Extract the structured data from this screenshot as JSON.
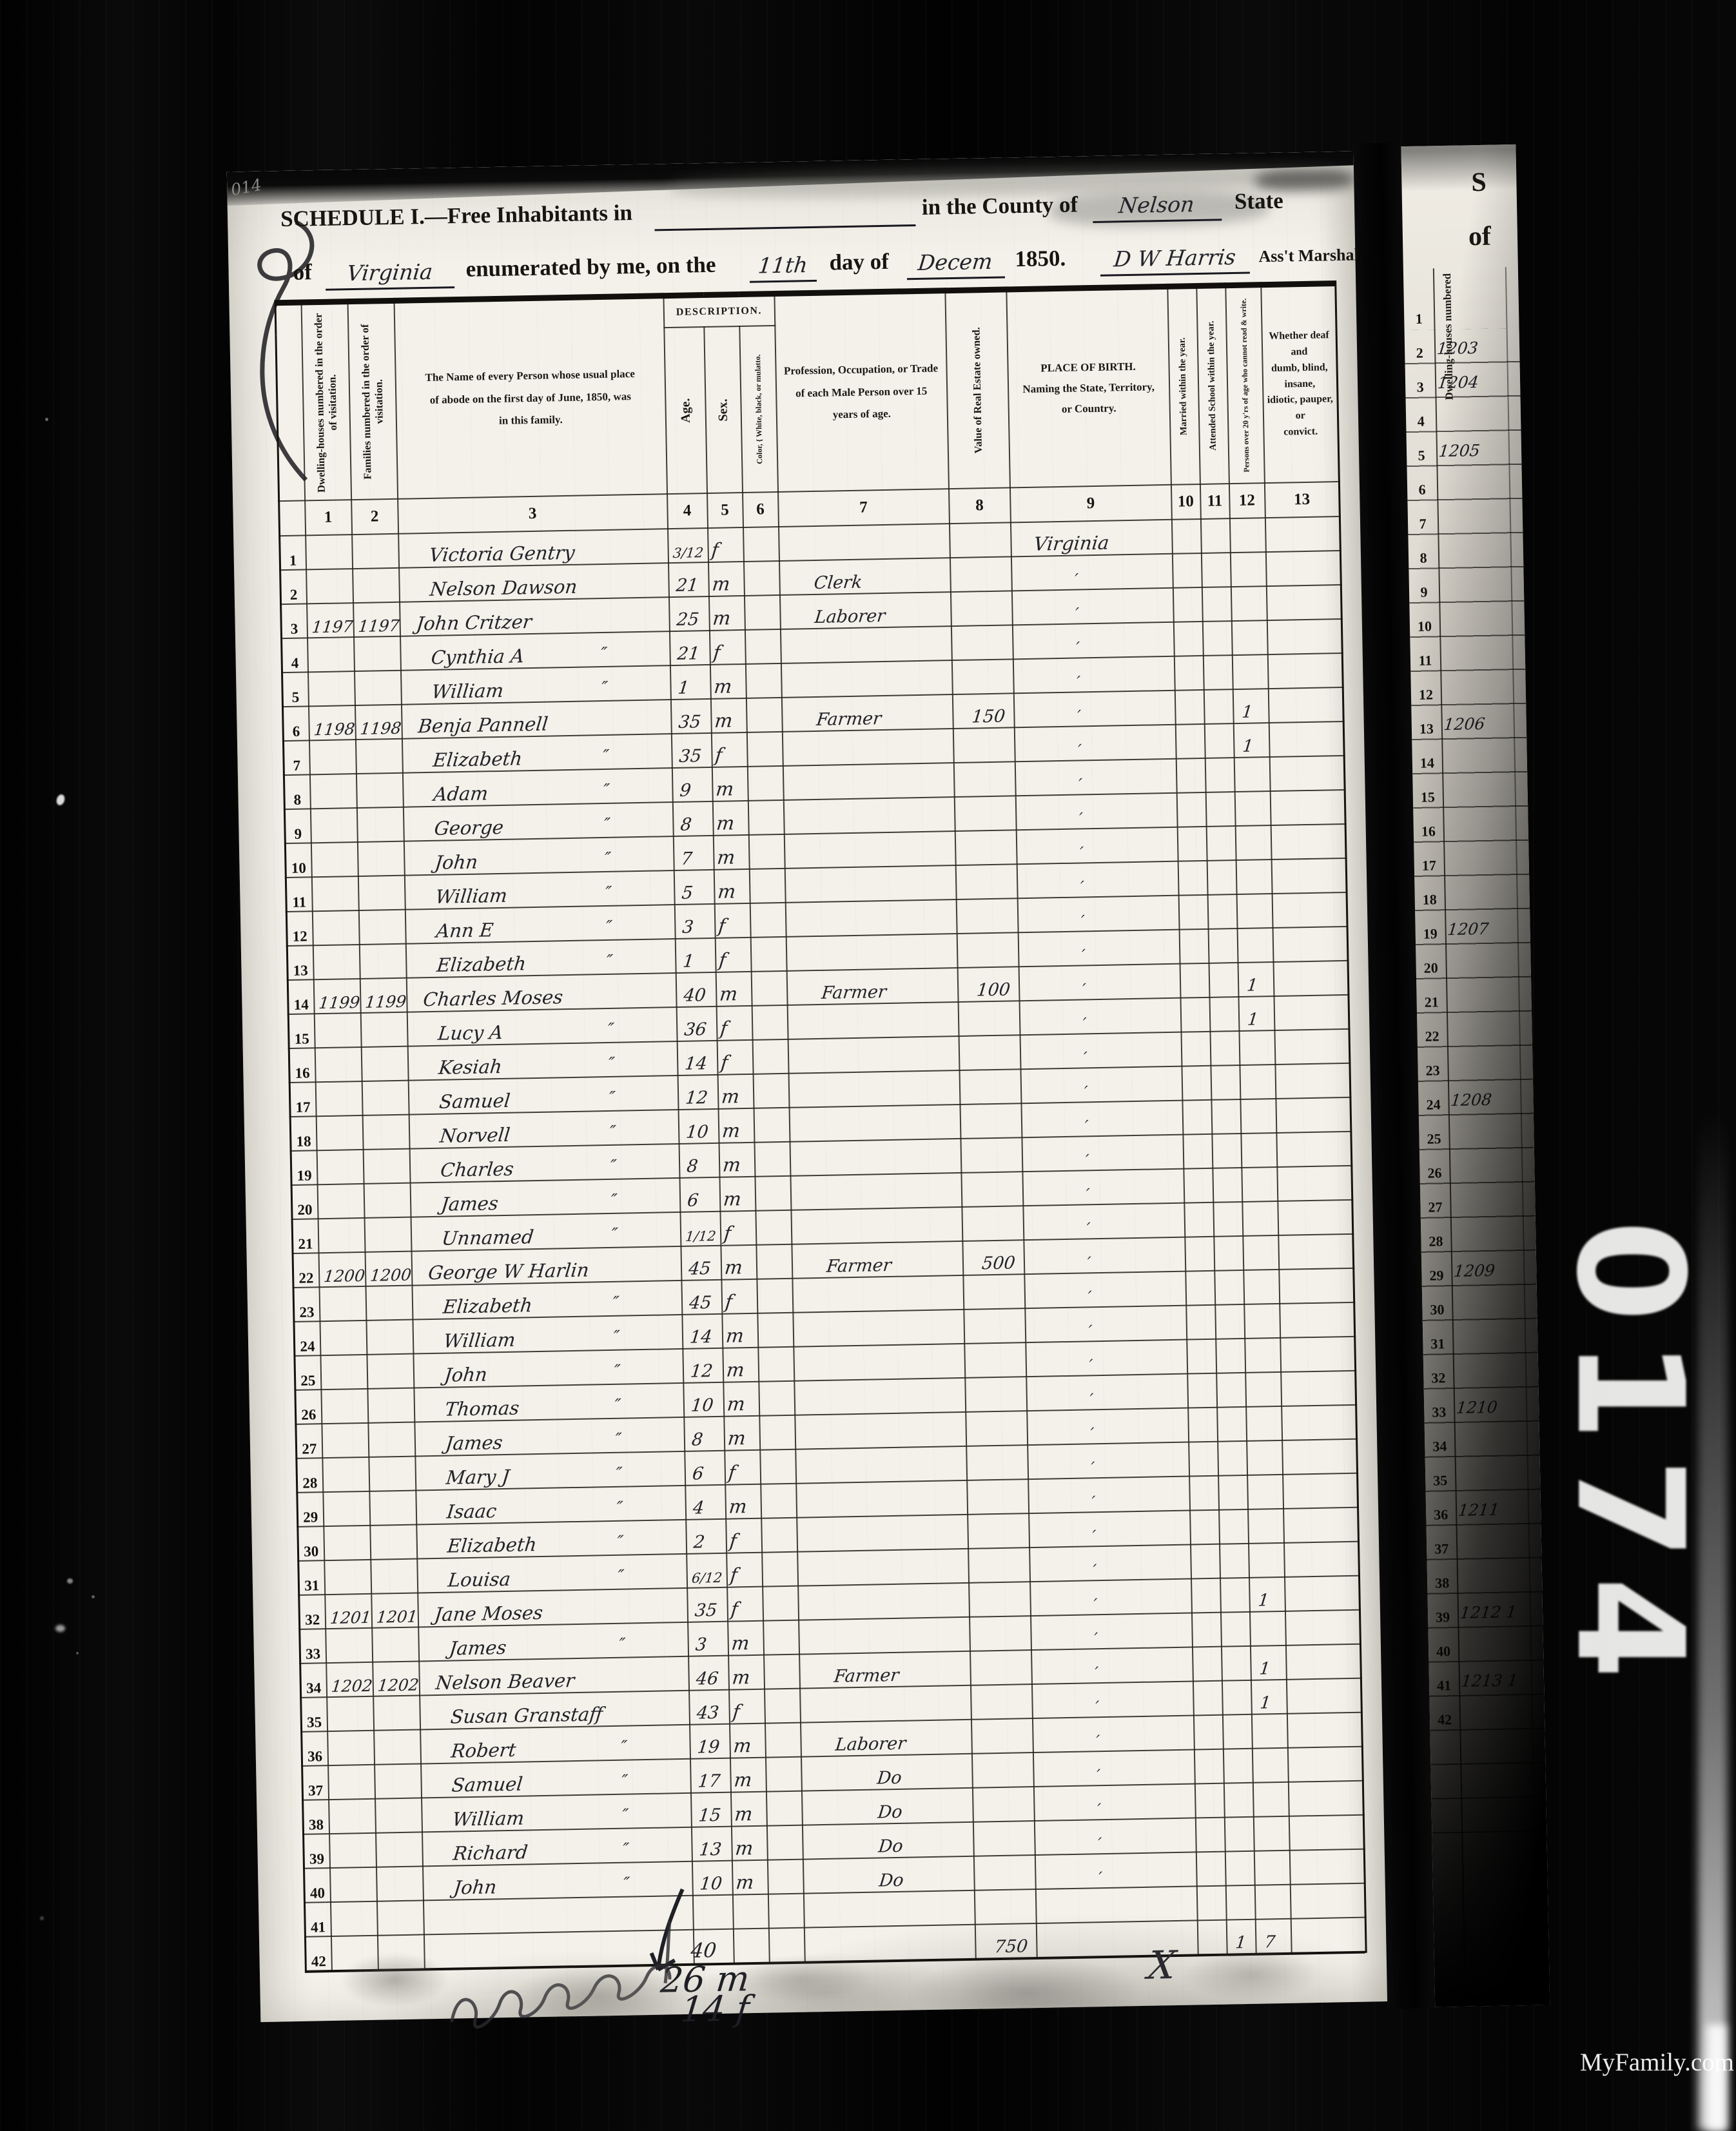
{
  "film": {
    "label": "0174",
    "watermark": "MyFamily.com",
    "corner_mark": "014"
  },
  "header": {
    "schedule": "SCHEDULE I.—Free Inhabitants in",
    "in_county": "in the County of",
    "county": "Nelson",
    "state_word": "State",
    "of_word": "of",
    "state": "Virginia",
    "enumerated": "enumerated by me, on the",
    "day": "11th",
    "day_of": "day of",
    "month": "Decem",
    "year": "1850.",
    "marshal": "D W Harris",
    "marshal_title": "Ass't Marshal."
  },
  "table": {
    "description_label": "DESCRIPTION.",
    "columns": {
      "c1": "Dwelling-houses numbered in the order of visitation.",
      "c2": "Families numbered in the order of visitation.",
      "c3": "The Name of every Person whose usual place\nof abode on the first day of June, 1850, was\nin this family.",
      "c4": "Age.",
      "c5": "Sex.",
      "c6": "Color, { White, black, or mulatto.",
      "c7": "Profession, Occupation, or Trade\nof each Male Person over 15\nyears of age.",
      "c8": "Value of Real Estate owned.",
      "c9": "PLACE OF BIRTH.\nNaming the State, Territory,\nor Country.",
      "c10": "Married within the year.",
      "c11": "Attended School within the year.",
      "c12": "Persons over 20 y'rs of age who cannot read & write.",
      "c13": "Whether deaf and\ndumb, blind, insane,\nidiotic, pauper, or\nconvict."
    },
    "numbers": [
      "1",
      "2",
      "3",
      "4",
      "5",
      "6",
      "7",
      "8",
      "9",
      "10",
      "11",
      "12",
      "13"
    ],
    "rows": [
      {
        "n": "1",
        "nm": "Victoria Gentry",
        "ag": "3/12",
        "sx": "f",
        "bp": "Virginia"
      },
      {
        "n": "2",
        "nm": "Nelson Dawson",
        "ag": "21",
        "sx": "m",
        "oc": "Clerk",
        "bp": "′"
      },
      {
        "n": "3",
        "dw": "1197",
        "fam": "1197",
        "nm": "John Critzer",
        "ag": "25",
        "sx": "m",
        "oc": "Laborer",
        "bp": "′"
      },
      {
        "n": "4",
        "nm": "Cynthia A",
        "d": "″",
        "ag": "21",
        "sx": "f",
        "bp": "′"
      },
      {
        "n": "5",
        "nm": "William",
        "d": "″",
        "ag": "1",
        "sx": "m",
        "bp": "′"
      },
      {
        "n": "6",
        "dw": "1198",
        "fam": "1198",
        "nm": "Benja Pannell",
        "ag": "35",
        "sx": "m",
        "oc": "Farmer",
        "vl": "150",
        "bp": "′",
        "c12": "1"
      },
      {
        "n": "7",
        "nm": "Elizabeth",
        "d": "″",
        "ag": "35",
        "sx": "f",
        "bp": "′",
        "c12": "1"
      },
      {
        "n": "8",
        "nm": "Adam",
        "d": "″",
        "ag": "9",
        "sx": "m",
        "bp": "′"
      },
      {
        "n": "9",
        "nm": "George",
        "d": "″",
        "ag": "8",
        "sx": "m",
        "bp": "′"
      },
      {
        "n": "10",
        "nm": "John",
        "d": "″",
        "ag": "7",
        "sx": "m",
        "bp": "′"
      },
      {
        "n": "11",
        "nm": "William",
        "d": "″",
        "ag": "5",
        "sx": "m",
        "bp": "′"
      },
      {
        "n": "12",
        "nm": "Ann E",
        "d": "″",
        "ag": "3",
        "sx": "f",
        "bp": "′"
      },
      {
        "n": "13",
        "nm": "Elizabeth",
        "d": "″",
        "ag": "1",
        "sx": "f",
        "bp": "′"
      },
      {
        "n": "14",
        "dw": "1199",
        "fam": "1199",
        "nm": "Charles Moses",
        "ag": "40",
        "sx": "m",
        "oc": "Farmer",
        "vl": "100",
        "bp": "′",
        "c12": "1"
      },
      {
        "n": "15",
        "nm": "Lucy A",
        "d": "″",
        "ag": "36",
        "sx": "f",
        "bp": "′",
        "c12": "1"
      },
      {
        "n": "16",
        "nm": "Kesiah",
        "d": "″",
        "ag": "14",
        "sx": "f",
        "bp": "′"
      },
      {
        "n": "17",
        "nm": "Samuel",
        "d": "″",
        "ag": "12",
        "sx": "m",
        "bp": "′"
      },
      {
        "n": "18",
        "nm": "Norvell",
        "d": "″",
        "ag": "10",
        "sx": "m",
        "bp": "′"
      },
      {
        "n": "19",
        "nm": "Charles",
        "d": "″",
        "ag": "8",
        "sx": "m",
        "bp": "′"
      },
      {
        "n": "20",
        "nm": "James",
        "d": "″",
        "ag": "6",
        "sx": "m",
        "bp": "′"
      },
      {
        "n": "21",
        "nm": "Unnamed",
        "d": "″",
        "ag": "1/12",
        "sx": "f",
        "bp": "′"
      },
      {
        "n": "22",
        "dw": "1200",
        "fam": "1200",
        "nm": "George W Harlin",
        "ag": "45",
        "sx": "m",
        "oc": "Farmer",
        "vl": "500",
        "bp": "′"
      },
      {
        "n": "23",
        "nm": "Elizabeth",
        "d": "″",
        "ag": "45",
        "sx": "f",
        "bp": "′"
      },
      {
        "n": "24",
        "nm": "William",
        "d": "″",
        "ag": "14",
        "sx": "m",
        "bp": "′"
      },
      {
        "n": "25",
        "nm": "John",
        "d": "″",
        "ag": "12",
        "sx": "m",
        "bp": "′"
      },
      {
        "n": "26",
        "nm": "Thomas",
        "d": "″",
        "ag": "10",
        "sx": "m",
        "bp": "′"
      },
      {
        "n": "27",
        "nm": "James",
        "d": "″",
        "ag": "8",
        "sx": "m",
        "bp": "′"
      },
      {
        "n": "28",
        "nm": "Mary J",
        "d": "″",
        "ag": "6",
        "sx": "f",
        "bp": "′"
      },
      {
        "n": "29",
        "nm": "Isaac",
        "d": "″",
        "ag": "4",
        "sx": "m",
        "bp": "′"
      },
      {
        "n": "30",
        "nm": "Elizabeth",
        "d": "″",
        "ag": "2",
        "sx": "f",
        "bp": "′"
      },
      {
        "n": "31",
        "nm": "Louisa",
        "d": "″",
        "ag": "6/12",
        "sx": "f",
        "bp": "′"
      },
      {
        "n": "32",
        "dw": "1201",
        "fam": "1201",
        "nm": "Jane Moses",
        "ag": "35",
        "sx": "f",
        "bp": "′",
        "c12": "1"
      },
      {
        "n": "33",
        "nm": "James",
        "d": "″",
        "ag": "3",
        "sx": "m",
        "bp": "′"
      },
      {
        "n": "34",
        "dw": "1202",
        "fam": "1202",
        "nm": "Nelson Beaver",
        "ag": "46",
        "sx": "m",
        "oc": "Farmer",
        "bp": "′",
        "c12": "1"
      },
      {
        "n": "35",
        "nm": "Susan Granstaff",
        "ag": "43",
        "sx": "f",
        "bp": "′",
        "c12": "1"
      },
      {
        "n": "36",
        "nm": "Robert",
        "d": "″",
        "ag": "19",
        "sx": "m",
        "oc": "Laborer",
        "bp": "′"
      },
      {
        "n": "37",
        "nm": "Samuel",
        "d": "″",
        "ag": "17",
        "sx": "m",
        "oc": "Do",
        "bp": "′"
      },
      {
        "n": "38",
        "nm": "William",
        "d": "″",
        "ag": "15",
        "sx": "m",
        "oc": "Do",
        "bp": "′"
      },
      {
        "n": "39",
        "nm": "Richard",
        "d": "″",
        "ag": "13",
        "sx": "m",
        "oc": "Do",
        "bp": "′"
      },
      {
        "n": "40",
        "nm": "John",
        "d": "″",
        "ag": "10",
        "sx": "m",
        "oc": "Do",
        "bp": "′"
      },
      {
        "n": "41"
      },
      {
        "n": "42",
        "ag": "40",
        "vl": "750",
        "c11": "1",
        "c12": "7"
      }
    ],
    "tally_m": "26 m",
    "tally_f": "14 f",
    "x_mark": "X"
  },
  "side_page": {
    "top_letter": "S",
    "of_word": "of",
    "col_header": "Dwelling-houses numbered",
    "row_start": 1,
    "row_end": 42,
    "entries": [
      {
        "row": 2,
        "text": "1203"
      },
      {
        "row": 3,
        "text": "1204"
      },
      {
        "row": 5,
        "text": "1205"
      },
      {
        "row": 13,
        "text": "1206"
      },
      {
        "row": 19,
        "text": "1207"
      },
      {
        "row": 24,
        "text": "1208"
      },
      {
        "row": 29,
        "text": "1209"
      },
      {
        "row": 33,
        "text": "1210"
      },
      {
        "row": 36,
        "text": "1211"
      },
      {
        "row": 39,
        "text": "1212 1"
      },
      {
        "row": 41,
        "text": "1213 1"
      }
    ]
  }
}
